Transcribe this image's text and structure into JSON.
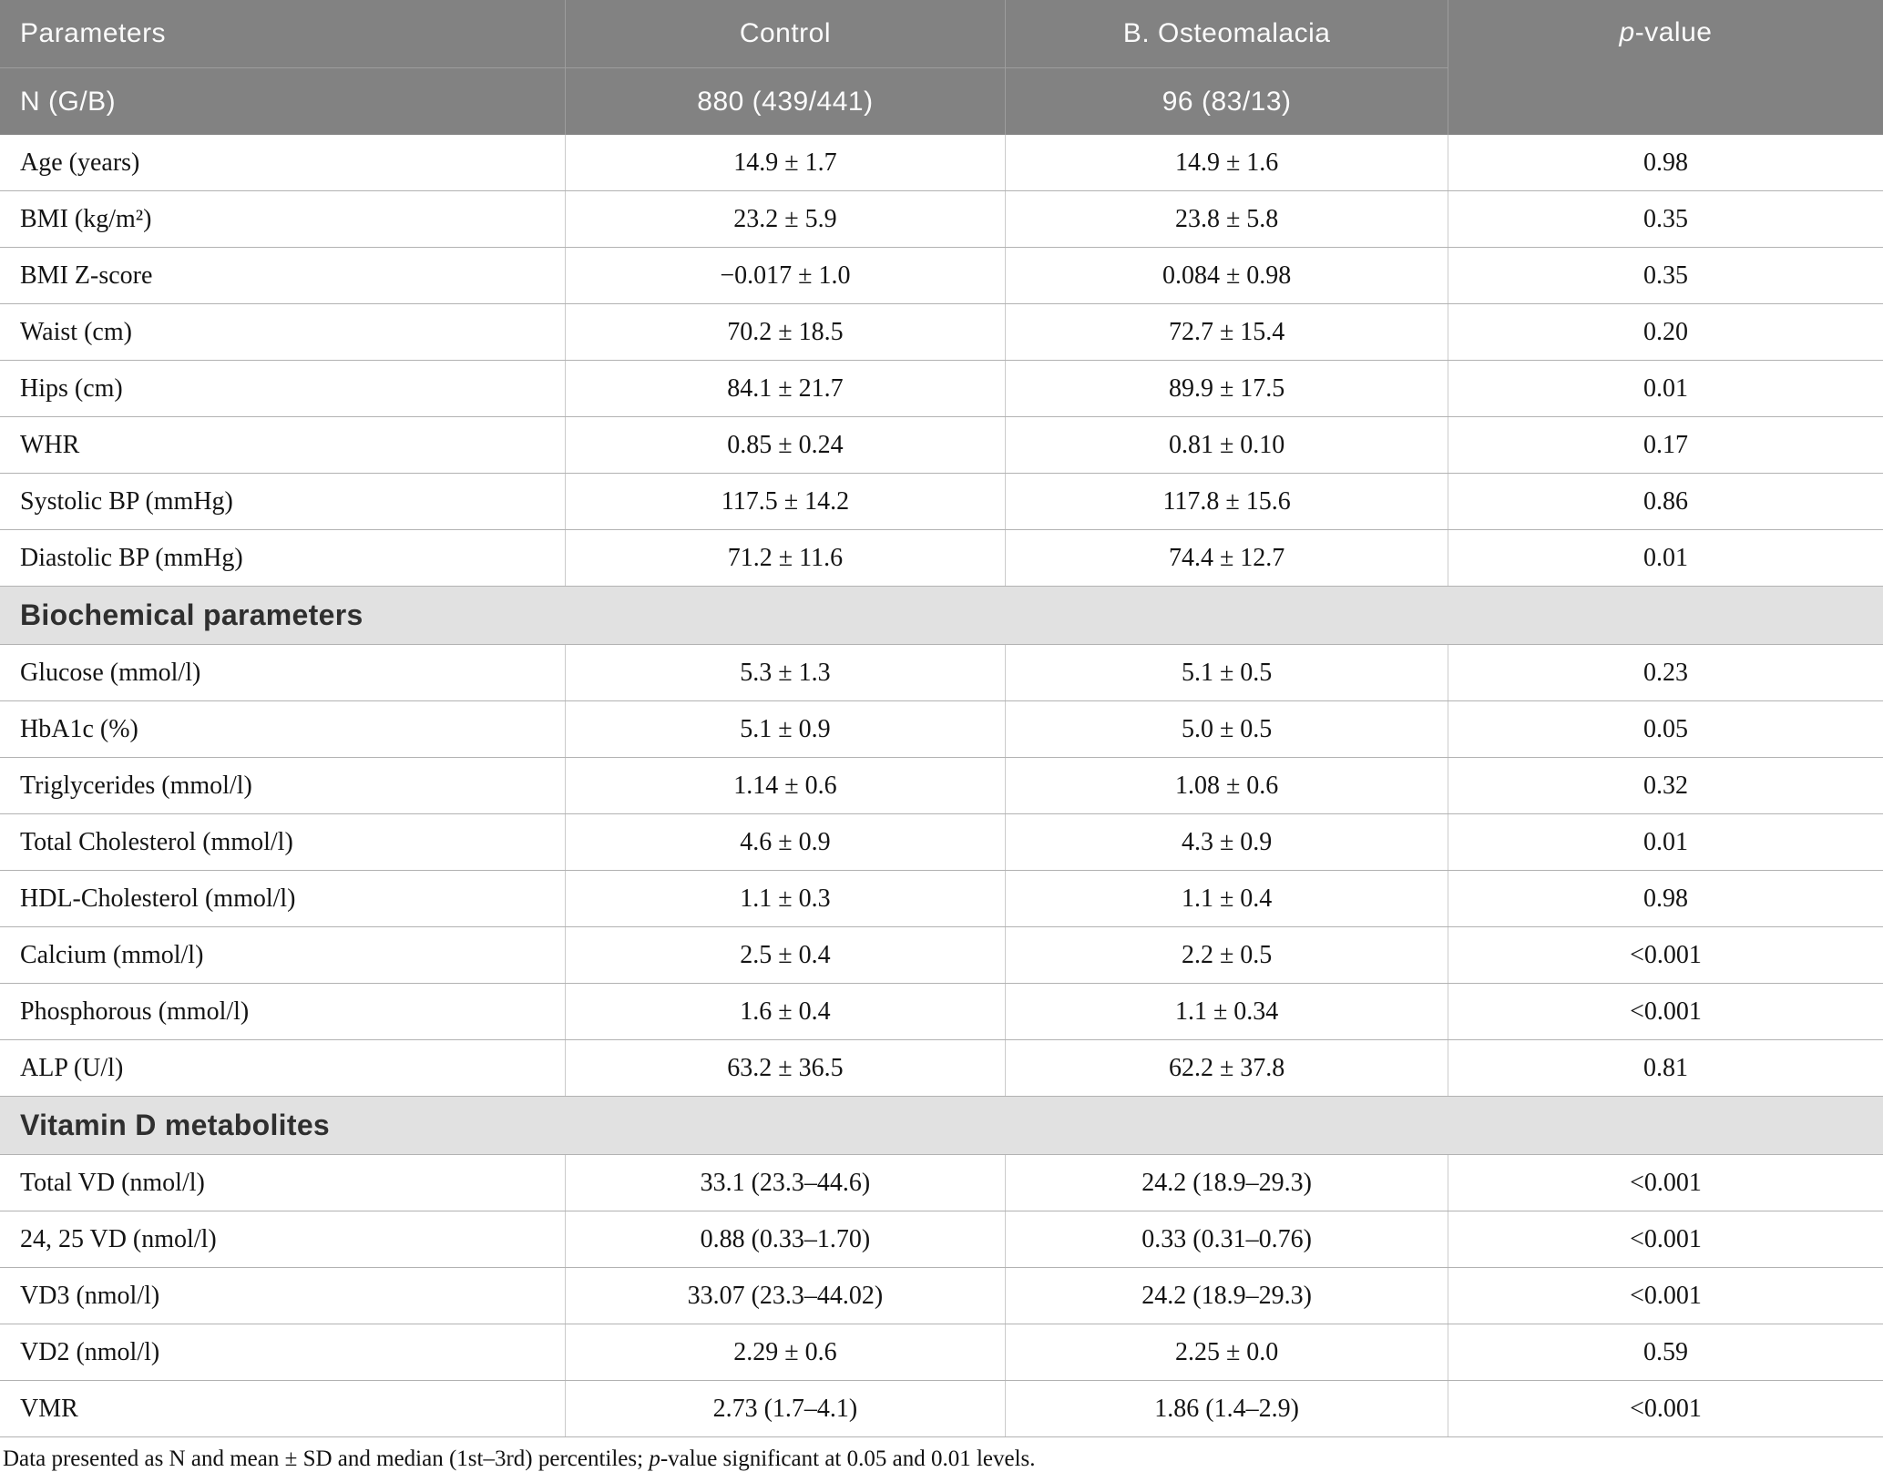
{
  "table": {
    "header": {
      "parameters": "Parameters",
      "control": "Control",
      "osteomalacia": "B. Osteomalacia",
      "p_italic": "p",
      "p_rest": "-value",
      "n_label": "N (G/B)",
      "n_control": "880 (439/441)",
      "n_osteomalacia": "96 (83/13)"
    },
    "anthropometric_rows": [
      {
        "label": "Age (years)",
        "control": "14.9 ± 1.7",
        "osteomalacia": "14.9 ± 1.6",
        "p": "0.98"
      },
      {
        "label": "BMI (kg/m²)",
        "control": "23.2 ± 5.9",
        "osteomalacia": "23.8 ± 5.8",
        "p": "0.35"
      },
      {
        "label": "BMI Z-score",
        "control": "−0.017 ± 1.0",
        "osteomalacia": "0.084 ± 0.98",
        "p": "0.35"
      },
      {
        "label": "Waist (cm)",
        "control": "70.2 ± 18.5",
        "osteomalacia": "72.7 ± 15.4",
        "p": "0.20"
      },
      {
        "label": "Hips (cm)",
        "control": "84.1 ± 21.7",
        "osteomalacia": "89.9 ± 17.5",
        "p": "0.01"
      },
      {
        "label": "WHR",
        "control": "0.85 ± 0.24",
        "osteomalacia": "0.81 ± 0.10",
        "p": "0.17"
      },
      {
        "label": "Systolic BP (mmHg)",
        "control": "117.5 ± 14.2",
        "osteomalacia": "117.8 ± 15.6",
        "p": "0.86"
      },
      {
        "label": "Diastolic BP (mmHg)",
        "control": "71.2 ± 11.6",
        "osteomalacia": "74.4 ± 12.7",
        "p": "0.01"
      }
    ],
    "biochemical_section_label": "Biochemical parameters",
    "biochemical_rows": [
      {
        "label": "Glucose (mmol/l)",
        "control": "5.3 ± 1.3",
        "osteomalacia": "5.1 ± 0.5",
        "p": "0.23"
      },
      {
        "label": "HbA1c (%)",
        "control": "5.1 ± 0.9",
        "osteomalacia": "5.0 ± 0.5",
        "p": "0.05"
      },
      {
        "label": "Triglycerides (mmol/l)",
        "control": "1.14 ± 0.6",
        "osteomalacia": "1.08 ± 0.6",
        "p": "0.32"
      },
      {
        "label": "Total Cholesterol (mmol/l)",
        "control": "4.6 ± 0.9",
        "osteomalacia": "4.3 ± 0.9",
        "p": "0.01"
      },
      {
        "label": "HDL-Cholesterol (mmol/l)",
        "control": "1.1 ± 0.3",
        "osteomalacia": "1.1 ± 0.4",
        "p": "0.98"
      },
      {
        "label": "Calcium (mmol/l)",
        "control": "2.5 ± 0.4",
        "osteomalacia": "2.2 ± 0.5",
        "p": "<0.001"
      },
      {
        "label": "Phosphorous (mmol/l)",
        "control": "1.6 ± 0.4",
        "osteomalacia": "1.1 ± 0.34",
        "p": "<0.001"
      },
      {
        "label": "ALP (U/l)",
        "control": "63.2 ± 36.5",
        "osteomalacia": "62.2 ± 37.8",
        "p": "0.81"
      }
    ],
    "vitamin_d_section_label": "Vitamin D metabolites",
    "vitamin_d_rows": [
      {
        "label": "Total VD (nmol/l)",
        "control": "33.1 (23.3–44.6)",
        "osteomalacia": "24.2 (18.9–29.3)",
        "p": "<0.001"
      },
      {
        "label": "24, 25 VD (nmol/l)",
        "control": "0.88 (0.33–1.70)",
        "osteomalacia": "0.33 (0.31–0.76)",
        "p": "<0.001"
      },
      {
        "label": "VD3 (nmol/l)",
        "control": "33.07 (23.3–44.02)",
        "osteomalacia": "24.2 (18.9–29.3)",
        "p": "<0.001"
      },
      {
        "label": "VD2 (nmol/l)",
        "control": "2.29 ± 0.6",
        "osteomalacia": "2.25 ± 0.0",
        "p": "0.59"
      },
      {
        "label": "VMR",
        "control": "2.73 (1.7–4.1)",
        "osteomalacia": "1.86 (1.4–2.9)",
        "p": "<0.001"
      }
    ],
    "footnote": {
      "before_p": "Data presented as N and mean ± SD and median (1st–3rd) percentiles; ",
      "p": "p",
      "after_p": "-value significant at 0.05 and 0.01 levels."
    },
    "colors": {
      "header_bg": "#828282",
      "section_bg": "#e1e1e1",
      "row_border": "#b2b2b2"
    }
  }
}
